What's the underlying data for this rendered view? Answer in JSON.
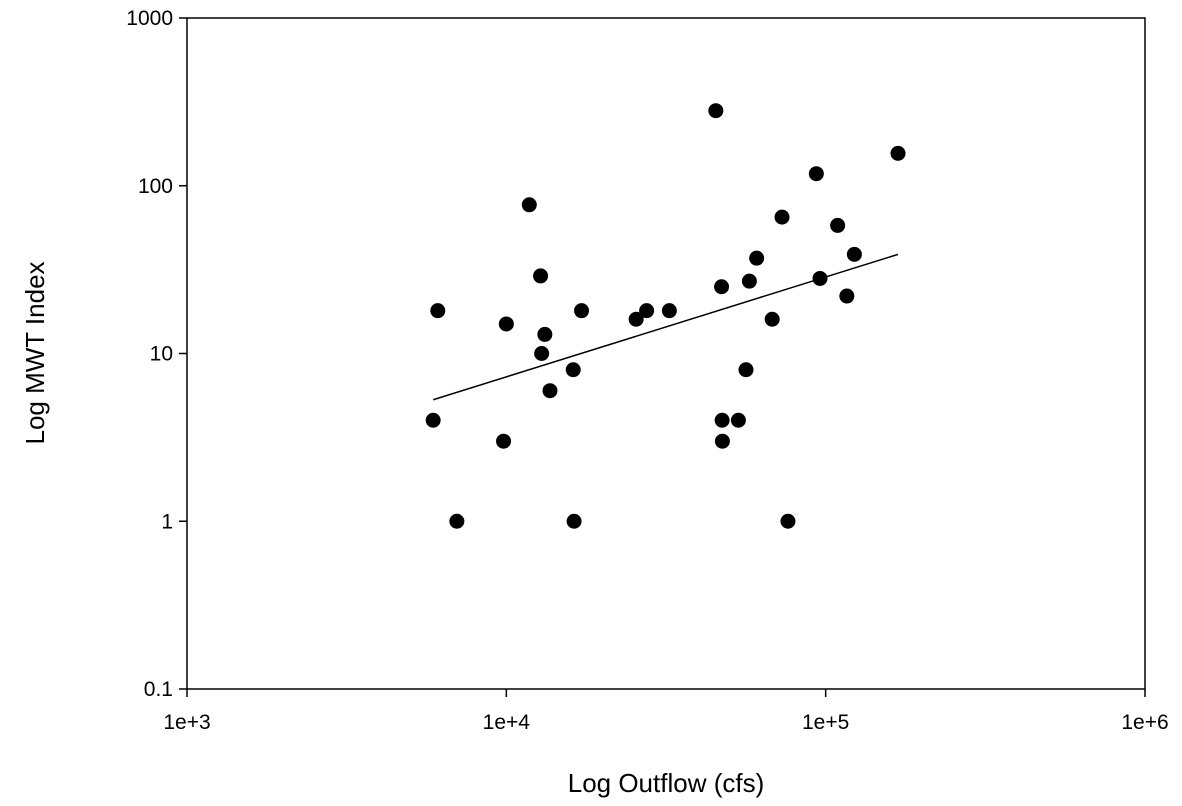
{
  "chart_data": {
    "type": "scatter",
    "title": "",
    "xlabel": "Log Outflow (cfs)",
    "ylabel": "Log MWT Index",
    "x_scale": "log",
    "y_scale": "log",
    "xlim": [
      1000,
      1000000
    ],
    "ylim": [
      0.1,
      1000
    ],
    "x_ticks": [
      1000,
      10000,
      100000,
      1000000
    ],
    "x_tick_labels": [
      "1e+3",
      "1e+4",
      "1e+5",
      "1e+6"
    ],
    "y_ticks": [
      0.1,
      1,
      10,
      100,
      1000
    ],
    "y_tick_labels": [
      "0.1",
      "1",
      "10",
      "100",
      "1000"
    ],
    "grid": false,
    "legend": "none",
    "marker_color": "#000000",
    "points": [
      {
        "x": 5900,
        "y": 4
      },
      {
        "x": 6100,
        "y": 18
      },
      {
        "x": 7000,
        "y": 1
      },
      {
        "x": 9800,
        "y": 3
      },
      {
        "x": 10000,
        "y": 15
      },
      {
        "x": 11800,
        "y": 77
      },
      {
        "x": 12800,
        "y": 29
      },
      {
        "x": 12900,
        "y": 10
      },
      {
        "x": 13200,
        "y": 13
      },
      {
        "x": 13700,
        "y": 6
      },
      {
        "x": 16200,
        "y": 8
      },
      {
        "x": 16300,
        "y": 1
      },
      {
        "x": 17200,
        "y": 18
      },
      {
        "x": 25500,
        "y": 16
      },
      {
        "x": 27500,
        "y": 18
      },
      {
        "x": 32400,
        "y": 18
      },
      {
        "x": 45300,
        "y": 280
      },
      {
        "x": 47200,
        "y": 25
      },
      {
        "x": 47400,
        "y": 4
      },
      {
        "x": 47500,
        "y": 3
      },
      {
        "x": 53300,
        "y": 4
      },
      {
        "x": 56300,
        "y": 8
      },
      {
        "x": 57700,
        "y": 27
      },
      {
        "x": 60800,
        "y": 37
      },
      {
        "x": 68000,
        "y": 16
      },
      {
        "x": 73000,
        "y": 65
      },
      {
        "x": 76200,
        "y": 1
      },
      {
        "x": 93500,
        "y": 118
      },
      {
        "x": 96000,
        "y": 28
      },
      {
        "x": 109000,
        "y": 58
      },
      {
        "x": 116500,
        "y": 22
      },
      {
        "x": 123000,
        "y": 39
      },
      {
        "x": 168500,
        "y": 156
      }
    ],
    "trendline": {
      "type": "linear-log",
      "start": {
        "x": 5900,
        "y": 5.3
      },
      "end": {
        "x": 168500,
        "y": 39
      }
    }
  }
}
